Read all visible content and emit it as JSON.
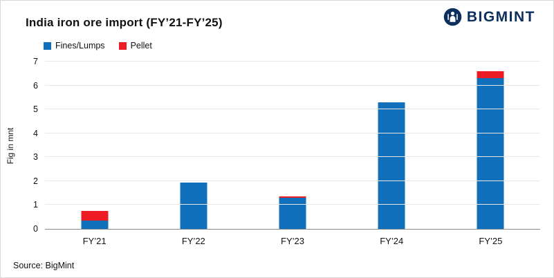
{
  "header": {
    "title": "India iron ore import (FY’21-FY’25)",
    "brand": "BIGMINT"
  },
  "legend": [
    {
      "label": "Fines/Lumps",
      "color": "#1170bc"
    },
    {
      "label": "Pellet",
      "color": "#ed1c24"
    }
  ],
  "footer": {
    "source": "Source: BigMint"
  },
  "colors": {
    "fines_lumps": "#1170bc",
    "pellet": "#ed1c24",
    "brand_navy": "#0c2f5e"
  },
  "chart_data": {
    "type": "bar",
    "stacked": true,
    "title": "India iron ore import (FY’21-FY’25)",
    "categories": [
      "FY’21",
      "FY’22",
      "FY’23",
      "FY’24",
      "FY’25"
    ],
    "series": [
      {
        "name": "Fines/Lumps",
        "color": "#1170bc",
        "values": [
          0.35,
          1.95,
          1.3,
          5.3,
          6.3
        ]
      },
      {
        "name": "Pellet",
        "color": "#ed1c24",
        "values": [
          0.4,
          0,
          0.07,
          0,
          0.3
        ]
      }
    ],
    "xlabel": "",
    "ylabel": "Fig in mnt",
    "ylim": [
      0,
      7
    ],
    "yticks": [
      0,
      1,
      2,
      3,
      4,
      5,
      6,
      7
    ],
    "grid": true,
    "legend_position": "top-left"
  }
}
